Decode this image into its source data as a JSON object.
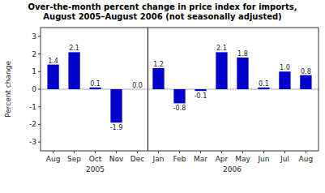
{
  "chart_data": {
    "type": "bar",
    "title": "Over-the-month percent change in price index for imports,",
    "subtitle": "August 2005–August 2006 (not seasonally adjusted)",
    "categories": [
      "Aug",
      "Sep",
      "Oct",
      "Nov",
      "Dec",
      "Jan",
      "Feb",
      "Mar",
      "Apr",
      "May",
      "Jun",
      "Jul",
      "Aug"
    ],
    "values": [
      1.4,
      2.1,
      0.1,
      -1.9,
      0.0,
      1.2,
      -0.8,
      -0.1,
      2.1,
      1.8,
      0.1,
      1.0,
      0.8
    ],
    "value_labels": [
      "1.4",
      "2.1",
      "0.1",
      "-1.9",
      "0.0",
      "1.2",
      "-0.8",
      "-0.1",
      "2.1",
      "1.8",
      "0.1",
      "1.0",
      "0.8"
    ],
    "data_labels": true,
    "color": "#0000CC",
    "ylabel": "Percent change",
    "ylim": [
      -3.5,
      3.5
    ],
    "yticks": [
      -3,
      -2,
      -1,
      0,
      1,
      2,
      3
    ],
    "grid": false,
    "annotations": [
      {
        "text": "2005",
        "x": 2.0
      },
      {
        "text": "2006",
        "x": 8.5
      },
      {
        "type": "line",
        "x": 4.5
      }
    ]
  }
}
